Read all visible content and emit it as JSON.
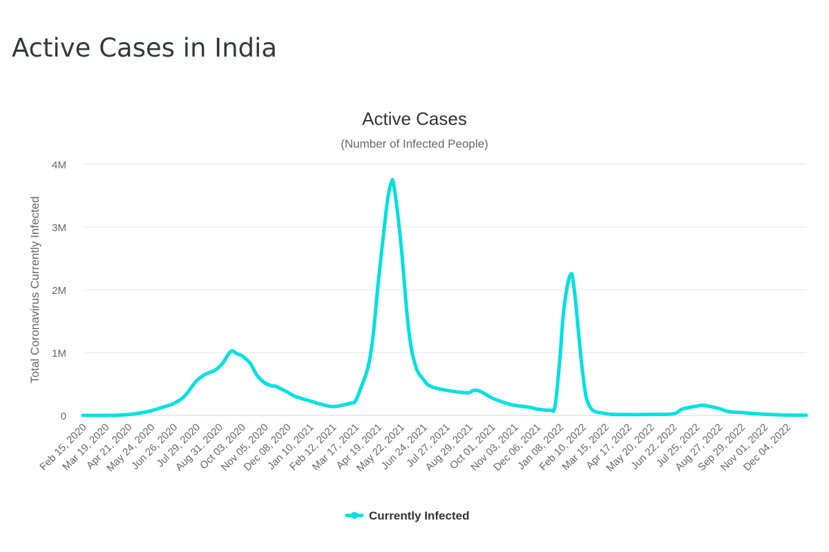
{
  "page": {
    "title": "Active Cases in India"
  },
  "colors": {
    "series": "#00E0E0",
    "title": "#333840",
    "axis_text": "#666666",
    "grid": "#e6e6e6"
  },
  "chart_data": {
    "type": "line",
    "title": "Active Cases",
    "subtitle": "(Number of Infected People)",
    "ylabel": "Total Coronavirus Currently Infected",
    "xlabel": "",
    "ylim": [
      0,
      4000000
    ],
    "yticks": [
      {
        "value": 0,
        "label": "0"
      },
      {
        "value": 1000000,
        "label": "1M"
      },
      {
        "value": 2000000,
        "label": "2M"
      },
      {
        "value": 3000000,
        "label": "3M"
      },
      {
        "value": 4000000,
        "label": "4M"
      }
    ],
    "xlim": [
      "2020-02-15",
      "2023-01-01"
    ],
    "xticks": [
      {
        "value": "2020-02-15",
        "label": "Feb 15, 2020"
      },
      {
        "value": "2020-03-19",
        "label": "Mar 19, 2020"
      },
      {
        "value": "2020-04-21",
        "label": "Apr 21, 2020"
      },
      {
        "value": "2020-05-24",
        "label": "May 24, 2020"
      },
      {
        "value": "2020-06-26",
        "label": "Jun 26, 2020"
      },
      {
        "value": "2020-07-29",
        "label": "Jul 29, 2020"
      },
      {
        "value": "2020-08-31",
        "label": "Aug 31, 2020"
      },
      {
        "value": "2020-10-03",
        "label": "Oct 03, 2020"
      },
      {
        "value": "2020-11-05",
        "label": "Nov 05, 2020"
      },
      {
        "value": "2020-12-08",
        "label": "Dec 08, 2020"
      },
      {
        "value": "2021-01-10",
        "label": "Jan 10, 2021"
      },
      {
        "value": "2021-02-12",
        "label": "Feb 12, 2021"
      },
      {
        "value": "2021-03-17",
        "label": "Mar 17, 2021"
      },
      {
        "value": "2021-04-19",
        "label": "Apr 19, 2021"
      },
      {
        "value": "2021-05-22",
        "label": "May 22, 2021"
      },
      {
        "value": "2021-06-24",
        "label": "Jun 24, 2021"
      },
      {
        "value": "2021-07-27",
        "label": "Jul 27, 2021"
      },
      {
        "value": "2021-08-29",
        "label": "Aug 29, 2021"
      },
      {
        "value": "2021-10-01",
        "label": "Oct 01, 2021"
      },
      {
        "value": "2021-11-03",
        "label": "Nov 03, 2021"
      },
      {
        "value": "2021-12-06",
        "label": "Dec 06, 2021"
      },
      {
        "value": "2022-01-08",
        "label": "Jan 08, 2022"
      },
      {
        "value": "2022-02-10",
        "label": "Feb 10, 2022"
      },
      {
        "value": "2022-03-15",
        "label": "Mar 15, 2022"
      },
      {
        "value": "2022-04-17",
        "label": "Apr 17, 2022"
      },
      {
        "value": "2022-05-20",
        "label": "May 20, 2022"
      },
      {
        "value": "2022-06-22",
        "label": "Jun 22, 2022"
      },
      {
        "value": "2022-07-25",
        "label": "Jul 25, 2022"
      },
      {
        "value": "2022-08-27",
        "label": "Aug 27, 2022"
      },
      {
        "value": "2022-09-29",
        "label": "Sep 29, 2022"
      },
      {
        "value": "2022-11-01",
        "label": "Nov 01, 2022"
      },
      {
        "value": "2022-12-04",
        "label": "Dec 04, 2022"
      }
    ],
    "grid": true,
    "legend": "bottom-center",
    "series": [
      {
        "name": "Currently Infected",
        "color": "#00E0E0",
        "points": [
          [
            "2020-02-15",
            0
          ],
          [
            "2020-03-19",
            150
          ],
          [
            "2020-04-01",
            1500
          ],
          [
            "2020-04-21",
            14000
          ],
          [
            "2020-05-08",
            37000
          ],
          [
            "2020-05-24",
            73000
          ],
          [
            "2020-06-10",
            130000
          ],
          [
            "2020-06-26",
            190000
          ],
          [
            "2020-07-12",
            310000
          ],
          [
            "2020-07-29",
            550000
          ],
          [
            "2020-08-12",
            660000
          ],
          [
            "2020-08-25",
            720000
          ],
          [
            "2020-09-05",
            830000
          ],
          [
            "2020-09-17",
            1020000
          ],
          [
            "2020-09-26",
            980000
          ],
          [
            "2020-10-03",
            950000
          ],
          [
            "2020-10-15",
            830000
          ],
          [
            "2020-10-25",
            640000
          ],
          [
            "2020-11-05",
            520000
          ],
          [
            "2020-11-15",
            470000
          ],
          [
            "2020-11-22",
            460000
          ],
          [
            "2020-12-08",
            370000
          ],
          [
            "2020-12-20",
            300000
          ],
          [
            "2021-01-10",
            230000
          ],
          [
            "2021-01-25",
            180000
          ],
          [
            "2021-02-12",
            140000
          ],
          [
            "2021-02-27",
            165000
          ],
          [
            "2021-03-10",
            195000
          ],
          [
            "2021-03-17",
            230000
          ],
          [
            "2021-03-27",
            500000
          ],
          [
            "2021-04-05",
            800000
          ],
          [
            "2021-04-12",
            1300000
          ],
          [
            "2021-04-19",
            2100000
          ],
          [
            "2021-04-28",
            3000000
          ],
          [
            "2021-05-03",
            3450000
          ],
          [
            "2021-05-08",
            3700000
          ],
          [
            "2021-05-12",
            3650000
          ],
          [
            "2021-05-22",
            2750000
          ],
          [
            "2021-06-02",
            1400000
          ],
          [
            "2021-06-12",
            800000
          ],
          [
            "2021-06-24",
            570000
          ],
          [
            "2021-07-05",
            460000
          ],
          [
            "2021-07-27",
            400000
          ],
          [
            "2021-08-15",
            370000
          ],
          [
            "2021-08-29",
            360000
          ],
          [
            "2021-09-05",
            400000
          ],
          [
            "2021-09-15",
            380000
          ],
          [
            "2021-10-01",
            280000
          ],
          [
            "2021-10-20",
            200000
          ],
          [
            "2021-11-03",
            160000
          ],
          [
            "2021-11-25",
            130000
          ],
          [
            "2021-12-06",
            100000
          ],
          [
            "2021-12-25",
            85000
          ],
          [
            "2022-01-01",
            150000
          ],
          [
            "2022-01-08",
            900000
          ],
          [
            "2022-01-14",
            1700000
          ],
          [
            "2022-01-23",
            2230000
          ],
          [
            "2022-01-29",
            2000000
          ],
          [
            "2022-02-10",
            700000
          ],
          [
            "2022-02-20",
            150000
          ],
          [
            "2022-03-15",
            30000
          ],
          [
            "2022-04-17",
            13000
          ],
          [
            "2022-05-20",
            16000
          ],
          [
            "2022-06-22",
            25000
          ],
          [
            "2022-07-05",
            100000
          ],
          [
            "2022-07-25",
            145000
          ],
          [
            "2022-08-05",
            160000
          ],
          [
            "2022-08-27",
            110000
          ],
          [
            "2022-09-10",
            60000
          ],
          [
            "2022-09-29",
            45000
          ],
          [
            "2022-11-01",
            18000
          ],
          [
            "2022-12-04",
            6000
          ],
          [
            "2023-01-01",
            3000
          ]
        ]
      }
    ]
  }
}
